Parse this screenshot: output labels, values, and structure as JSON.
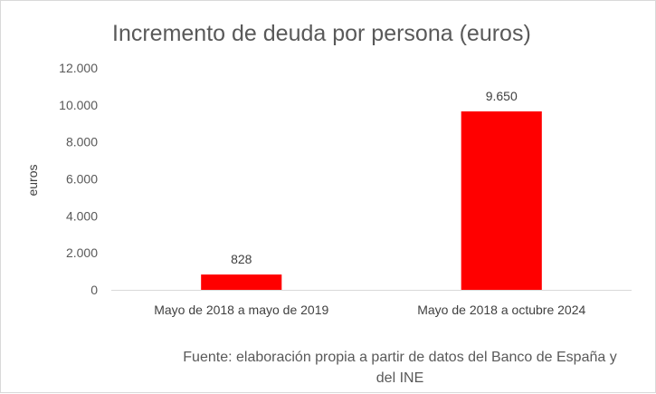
{
  "chart_data": {
    "type": "bar",
    "title": "Incremento de deuda por persona (euros)",
    "ylabel": "euros",
    "xlabel": "",
    "categories": [
      "Mayo de 2018 a mayo de 2019",
      "Mayo de 2018 a octubre 2024"
    ],
    "values": [
      828,
      9650
    ],
    "data_labels": [
      "828",
      "9.650"
    ],
    "ylim": [
      0,
      12000
    ],
    "yticks": [
      0,
      2000,
      4000,
      6000,
      8000,
      10000,
      12000
    ],
    "ytick_labels": [
      "0",
      "2.000",
      "4.000",
      "6.000",
      "8.000",
      "10.000",
      "12.000"
    ],
    "grid": false,
    "bar_color": "#ff0000",
    "source_lines": [
      "Fuente: elaboración propia a partir de datos del Banco de España y",
      "del INE"
    ]
  }
}
